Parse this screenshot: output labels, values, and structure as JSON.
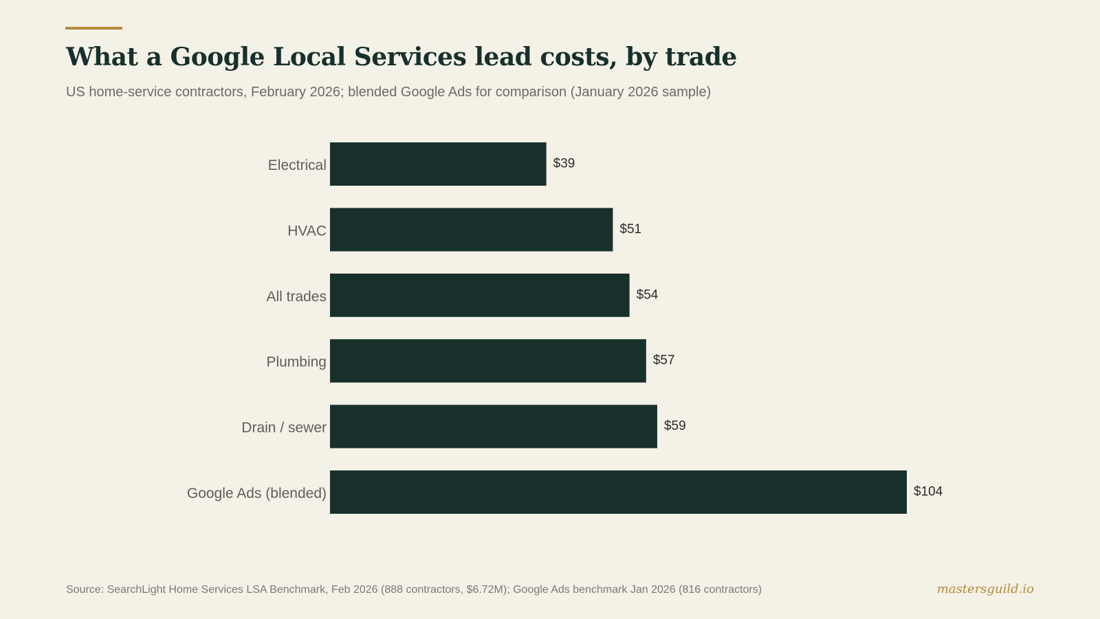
{
  "header": {
    "title": "What a Google Local Services lead costs, by trade",
    "subtitle": "US home-service contractors, February 2026; blended Google Ads for comparison (January 2026 sample)"
  },
  "footer": {
    "source": "Source: SearchLight Home Services LSA Benchmark, Feb 2026 (888 contractors, $6.72M); Google Ads benchmark Jan 2026 (816 contractors)",
    "brand": "mastersguild.io"
  },
  "colors": {
    "background": "#f4f1e7",
    "bar": "#17302c",
    "accent": "#b48a3c"
  },
  "chart_data": {
    "type": "bar",
    "orientation": "horizontal",
    "categories": [
      "Electrical",
      "HVAC",
      "All trades",
      "Plumbing",
      "Drain / sewer",
      "Google Ads (blended)"
    ],
    "values": [
      39,
      51,
      54,
      57,
      59,
      104
    ],
    "value_labels": [
      "$39",
      "$51",
      "$54",
      "$57",
      "$59",
      "$104"
    ],
    "xlim": [
      0,
      104
    ],
    "grid": false,
    "legend": "none"
  }
}
